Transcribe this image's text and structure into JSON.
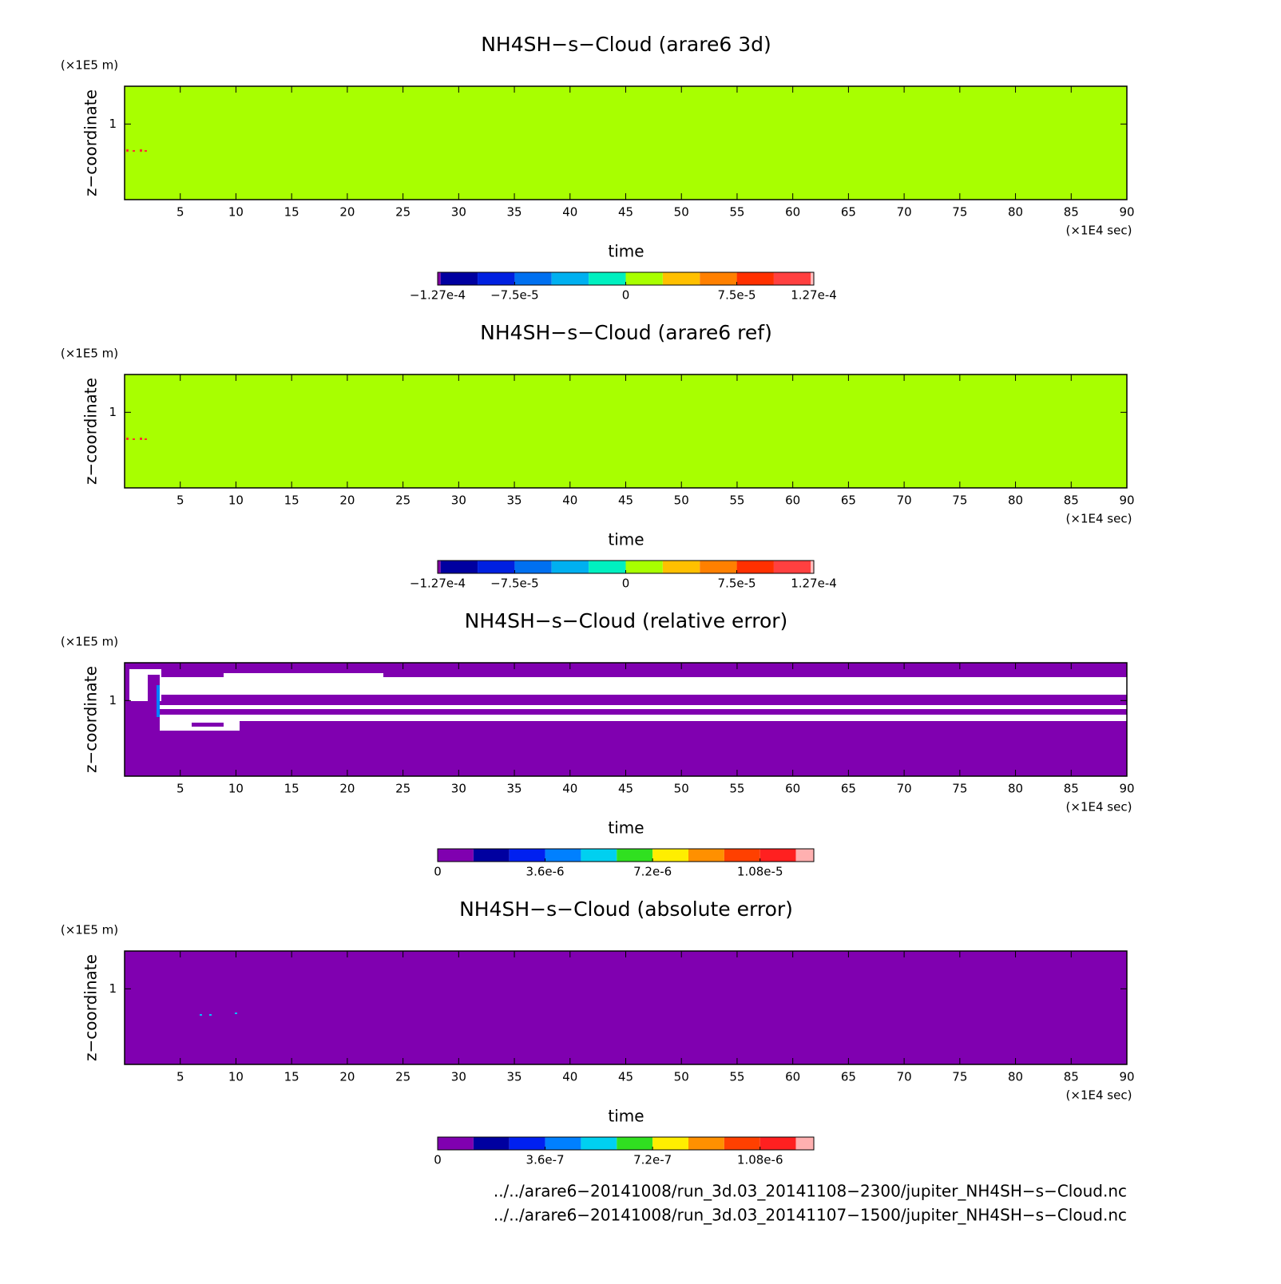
{
  "chart_data": [
    {
      "type": "heatmap",
      "title": "NH4SH−s−Cloud (arare6 3d)",
      "xlabel": "time",
      "xunit": "(×1E4 sec)",
      "ylabel": "z−coordinate",
      "yunit": "(×1E5 m)",
      "xlim": [
        0,
        90
      ],
      "xticks": [
        5,
        10,
        15,
        20,
        25,
        30,
        35,
        40,
        45,
        50,
        55,
        60,
        65,
        70,
        75,
        80,
        85,
        90
      ],
      "ylim": [
        0,
        1.5
      ],
      "yticks": [
        1
      ],
      "fill": "#a8ff00",
      "colorbar": {
        "levels": [
          -0.000127,
          -0.000125,
          -0.0001,
          -7.5e-05,
          -5e-05,
          -2.5e-05,
          0,
          2.5e-05,
          5e-05,
          7.5e-05,
          0.0001,
          0.000125,
          0.000127
        ],
        "colors": [
          "#8000a0",
          "#0000a0",
          "#0020e0",
          "#0070f0",
          "#00b0f0",
          "#00f0c0",
          "#a8ff00",
          "#ffc000",
          "#ff8000",
          "#ff3000",
          "#ff4040",
          "#ffc0c0"
        ],
        "ticks": [
          {
            "value": -0.000127,
            "label": "−1.27e-4"
          },
          {
            "value": -7.5e-05,
            "label": "−7.5e-5"
          },
          0,
          {
            "value": 7.5e-05,
            "label": "7.5e-5"
          },
          {
            "value": 0.000127,
            "label": "1.27e-4"
          }
        ]
      }
    },
    {
      "type": "heatmap",
      "title": "NH4SH−s−Cloud (arare6 ref)",
      "xlabel": "time",
      "xunit": "(×1E4 sec)",
      "ylabel": "z−coordinate",
      "yunit": "(×1E5 m)",
      "xlim": [
        0,
        90
      ],
      "xticks": [
        5,
        10,
        15,
        20,
        25,
        30,
        35,
        40,
        45,
        50,
        55,
        60,
        65,
        70,
        75,
        80,
        85,
        90
      ],
      "ylim": [
        0,
        1.5
      ],
      "yticks": [
        1
      ],
      "fill": "#a8ff00",
      "colorbar": {
        "levels": [
          -0.000127,
          -0.000125,
          -0.0001,
          -7.5e-05,
          -5e-05,
          -2.5e-05,
          0,
          2.5e-05,
          5e-05,
          7.5e-05,
          0.0001,
          0.000125,
          0.000127
        ],
        "colors": [
          "#8000a0",
          "#0000a0",
          "#0020e0",
          "#0070f0",
          "#00b0f0",
          "#00f0c0",
          "#a8ff00",
          "#ffc000",
          "#ff8000",
          "#ff3000",
          "#ff4040",
          "#ffc0c0"
        ],
        "ticks": [
          {
            "value": -0.000127,
            "label": "−1.27e-4"
          },
          {
            "value": -7.5e-05,
            "label": "−7.5e-5"
          },
          0,
          {
            "value": 7.5e-05,
            "label": "7.5e-5"
          },
          {
            "value": 0.000127,
            "label": "1.27e-4"
          }
        ]
      }
    },
    {
      "type": "heatmap",
      "title": "NH4SH−s−Cloud (relative error)",
      "xlabel": "time",
      "xunit": "(×1E4 sec)",
      "ylabel": "z−coordinate",
      "yunit": "(×1E5 m)",
      "xlim": [
        0,
        90
      ],
      "xticks": [
        5,
        10,
        15,
        20,
        25,
        30,
        35,
        40,
        45,
        50,
        55,
        60,
        65,
        70,
        75,
        80,
        85,
        90
      ],
      "ylim": [
        0,
        1.5
      ],
      "yticks": [
        1
      ],
      "fill": "#8000b0",
      "colorbar": {
        "levels": [
          0,
          1.2e-06,
          2.4e-06,
          3.6e-06,
          4.8e-06,
          6e-06,
          7.2e-06,
          8.4e-06,
          9.6e-06,
          1.08e-05,
          1.2e-05,
          1.26e-05
        ],
        "colors": [
          "#8000b0",
          "#0000a0",
          "#0020f0",
          "#0080ff",
          "#00d0f0",
          "#30e020",
          "#ffee00",
          "#ff9000",
          "#ff4000",
          "#ff2020",
          "#ffb0b0"
        ],
        "ticks": [
          0,
          {
            "value": 3.6e-06,
            "label": "3.6e-6"
          },
          {
            "value": 7.2e-06,
            "label": "7.2e-6"
          },
          {
            "value": 1.08e-05,
            "label": "1.08e-5"
          }
        ]
      }
    },
    {
      "type": "heatmap",
      "title": "NH4SH−s−Cloud (absolute error)",
      "xlabel": "time",
      "xunit": "(×1E4 sec)",
      "ylabel": "z−coordinate",
      "yunit": "(×1E5 m)",
      "xlim": [
        0,
        90
      ],
      "xticks": [
        5,
        10,
        15,
        20,
        25,
        30,
        35,
        40,
        45,
        50,
        55,
        60,
        65,
        70,
        75,
        80,
        85,
        90
      ],
      "ylim": [
        0,
        1.5
      ],
      "yticks": [
        1
      ],
      "fill": "#8000b0",
      "colorbar": {
        "levels": [
          0,
          1.2e-07,
          2.4e-07,
          3.6e-07,
          4.8e-07,
          6e-07,
          7.2e-07,
          8.4e-07,
          9.6e-07,
          1.08e-06,
          1.2e-06,
          1.26e-06
        ],
        "colors": [
          "#8000b0",
          "#0000a0",
          "#0020f0",
          "#0080ff",
          "#00d0f0",
          "#30e020",
          "#ffee00",
          "#ff9000",
          "#ff4000",
          "#ff2020",
          "#ffb0b0"
        ],
        "ticks": [
          0,
          {
            "value": 3.6e-07,
            "label": "3.6e-7"
          },
          {
            "value": 7.2e-07,
            "label": "7.2e-7"
          },
          {
            "value": 1.08e-06,
            "label": "1.08e-6"
          }
        ]
      }
    }
  ],
  "footer": [
    "../../arare6−20141008/run_3d.03_20141108−2300/jupiter_NH4SH−s−Cloud.nc",
    "../../arare6−20141008/run_3d.03_20141107−1500/jupiter_NH4SH−s−Cloud.nc"
  ]
}
